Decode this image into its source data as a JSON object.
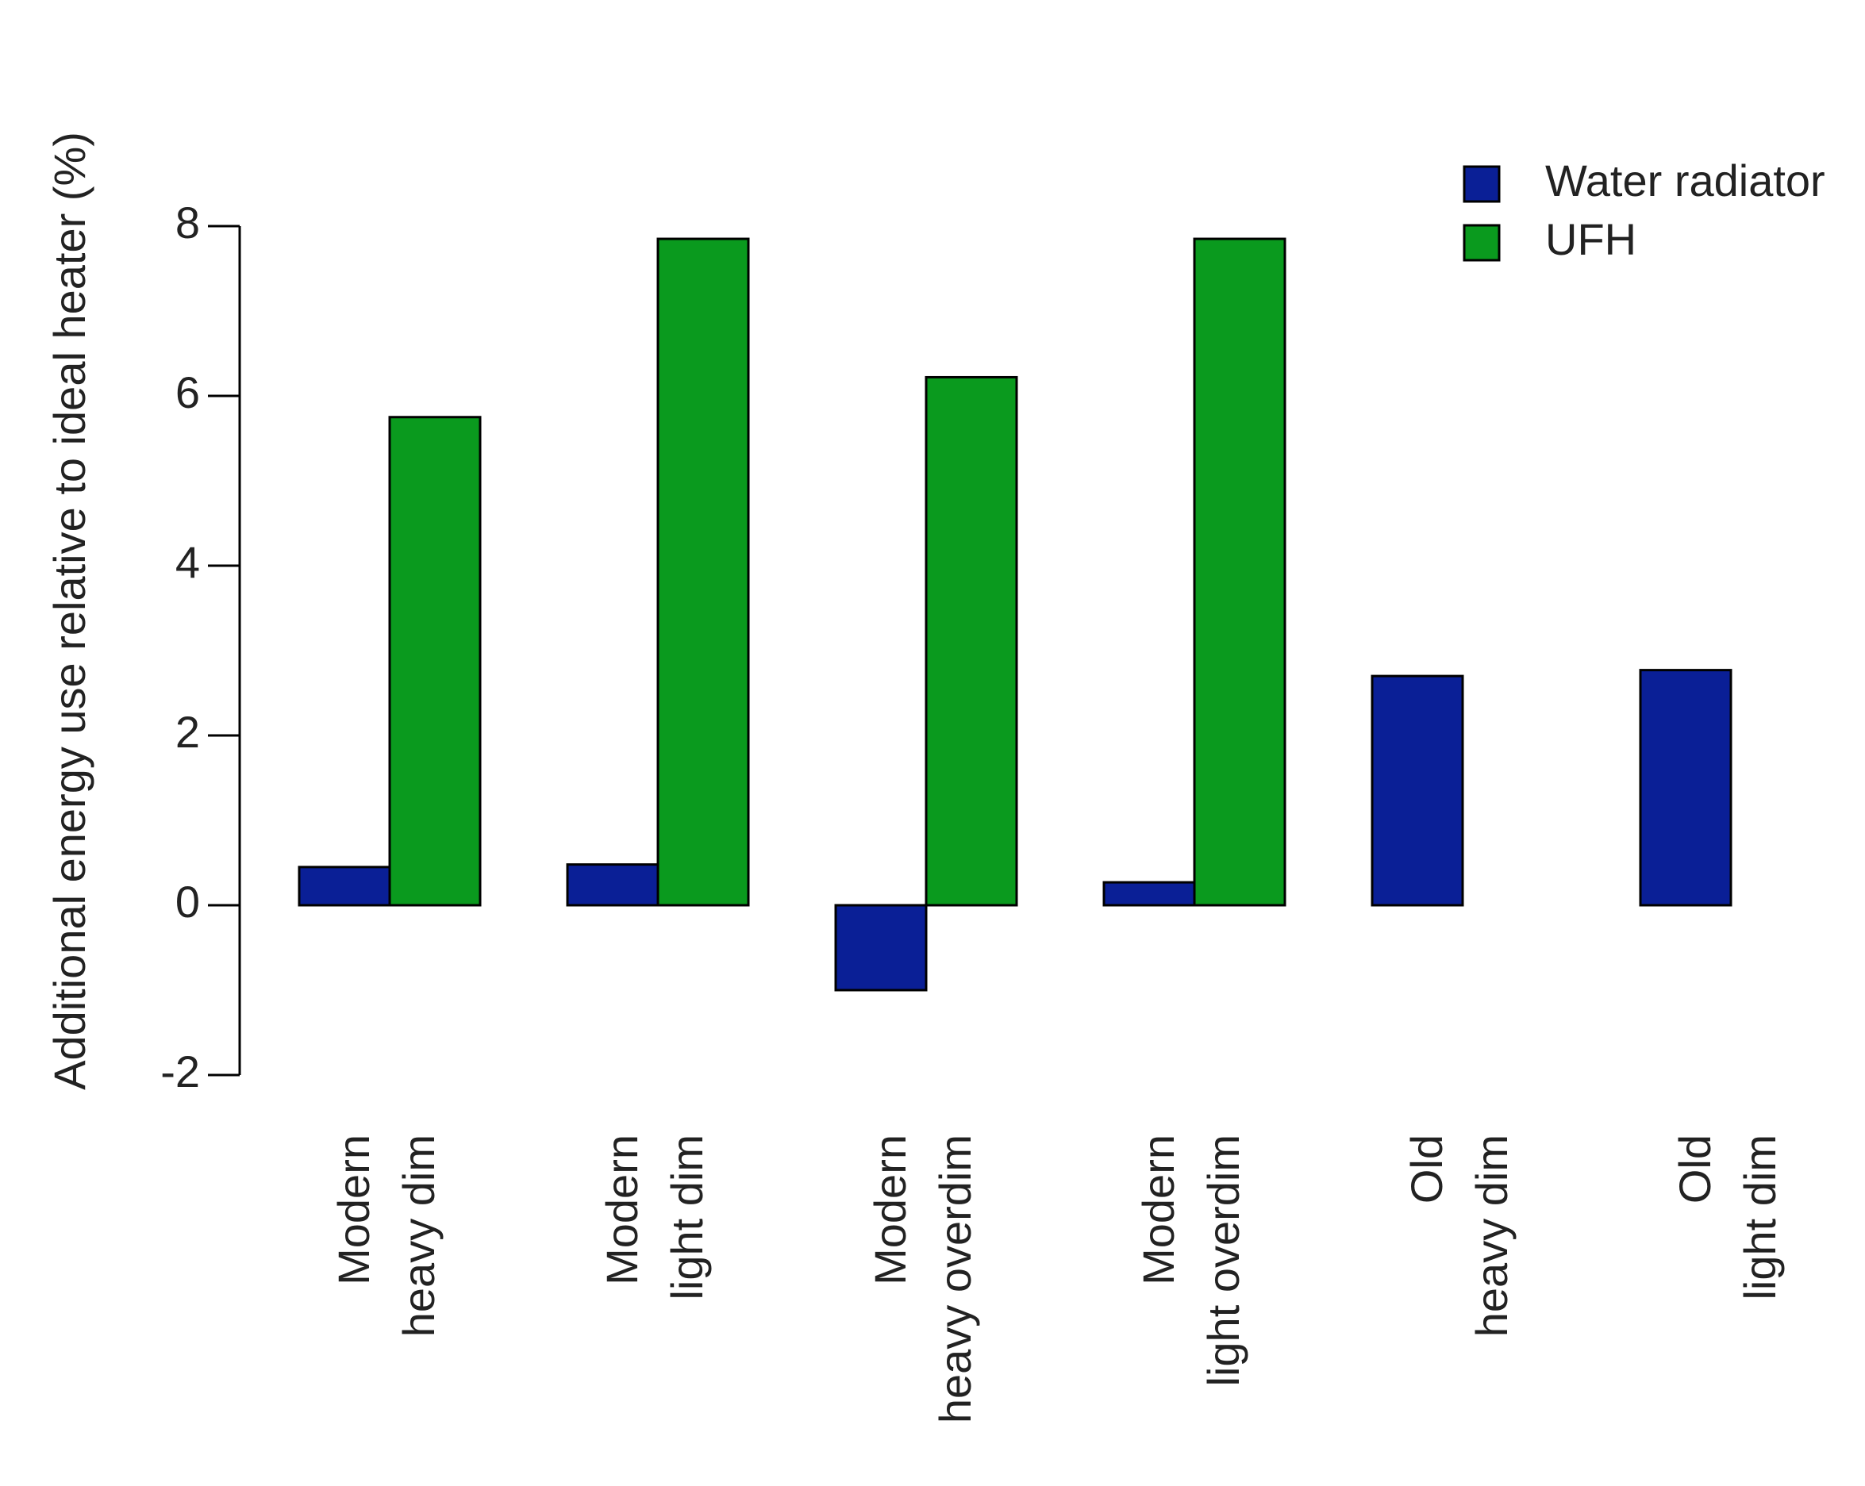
{
  "chart_data": {
    "type": "bar",
    "title": "",
    "xlabel": "",
    "ylabel": "Additional energy use relative to ideal heater (%)",
    "ylim": [
      -2,
      8
    ],
    "yticks": [
      -2,
      0,
      2,
      4,
      6,
      8
    ],
    "grid": false,
    "legend_position": "top-right",
    "categories": [
      [
        "Modern",
        "heavy dim"
      ],
      [
        "Modern",
        "light dim"
      ],
      [
        "Modern",
        "heavy overdim"
      ],
      [
        "Modern",
        "light overdim"
      ],
      [
        "Old",
        "heavy dim"
      ],
      [
        "Old",
        "light dim"
      ]
    ],
    "series": [
      {
        "name": "Water radiator",
        "color": "#0a1f96",
        "values": [
          0.45,
          0.48,
          -1.0,
          0.27,
          2.7,
          2.77
        ]
      },
      {
        "name": "UFH",
        "color": "#0a9a1e",
        "values": [
          5.75,
          7.85,
          6.22,
          7.85,
          null,
          null
        ]
      }
    ]
  }
}
